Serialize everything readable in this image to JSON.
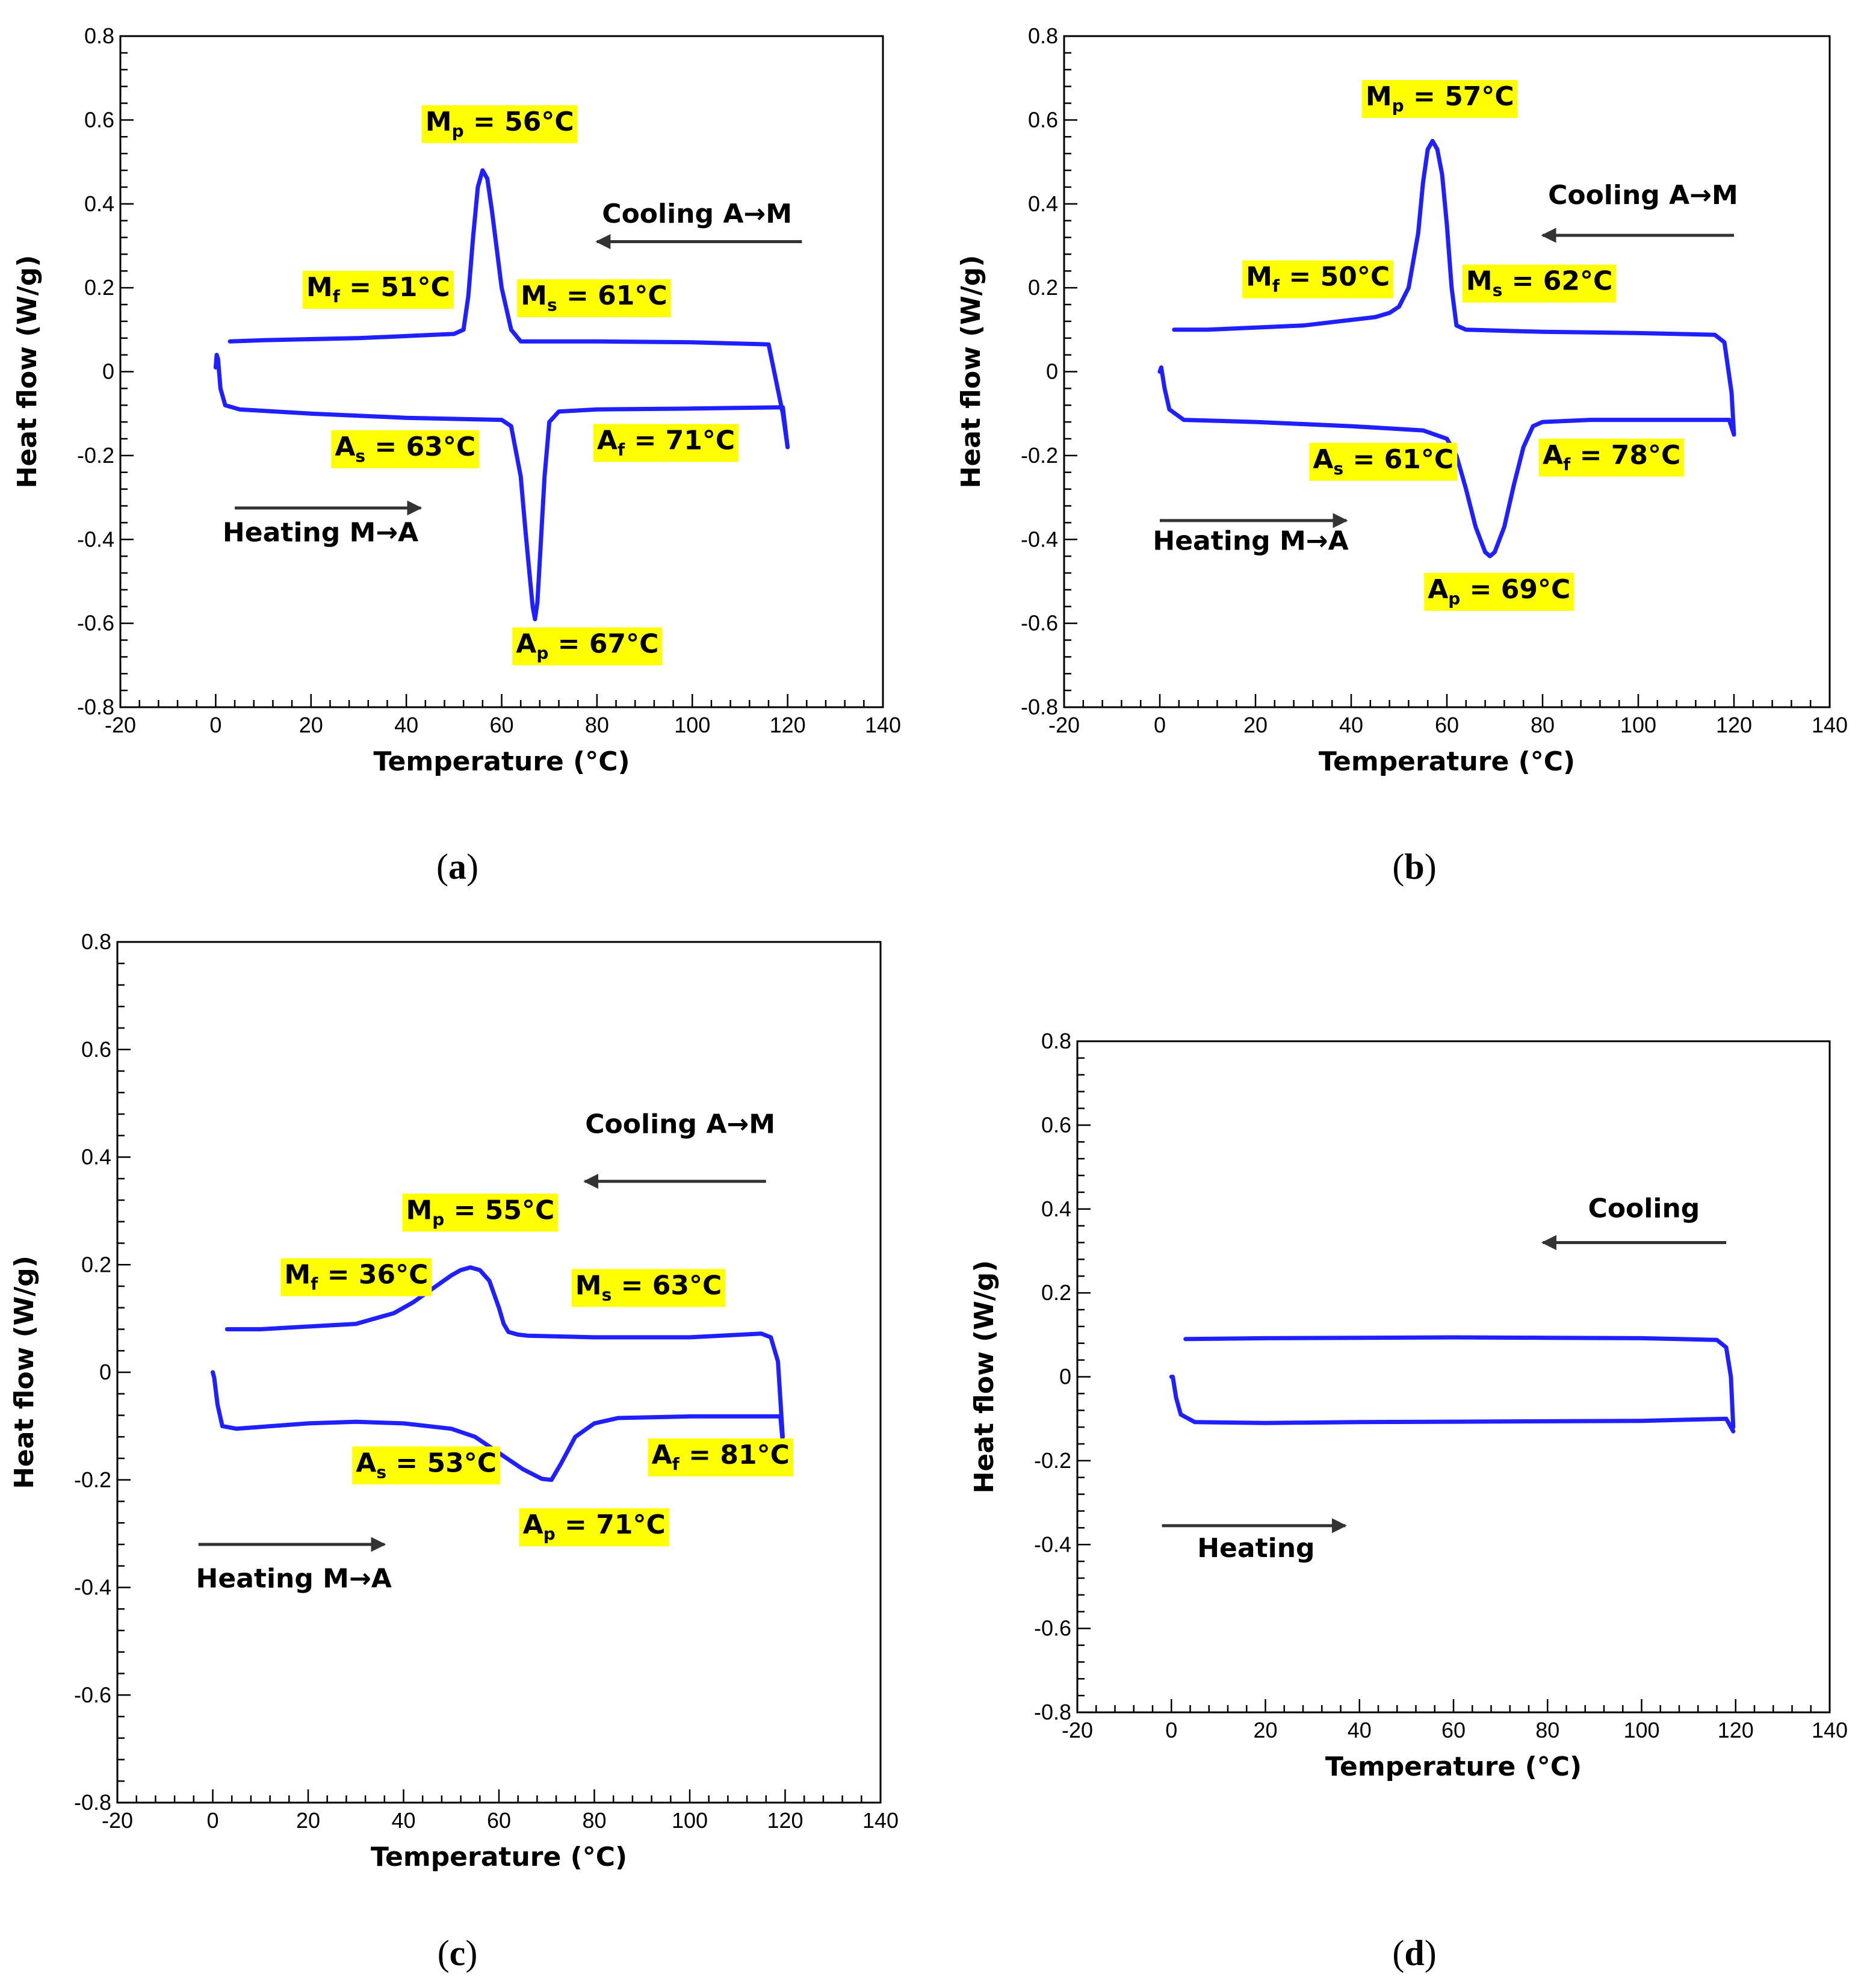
{
  "figure": {
    "colors": {
      "curve": "#1f1fff",
      "highlight": "#ffff00",
      "arrow": "#333333",
      "axis": "#000000"
    }
  },
  "chart_data": [
    {
      "type": "line",
      "panel": "a",
      "caption": {
        "open": "(",
        "letter": "a",
        "close": ")"
      },
      "xlabel": "Temperature (°C)",
      "ylabel": "Heat flow (W/g)",
      "xlim": [
        -20,
        140
      ],
      "ylim": [
        -0.8,
        0.8
      ],
      "xticks": [
        -20,
        0,
        20,
        40,
        60,
        80,
        100,
        120,
        140
      ],
      "yticks": [
        -0.8,
        -0.6,
        -0.4,
        -0.2,
        0,
        0.2,
        0.4,
        0.6,
        0.8
      ],
      "xtick_labels": [
        "-20",
        "0",
        "20",
        "40",
        "60",
        "80",
        "100",
        "120",
        "140"
      ],
      "ytick_labels": [
        "-0.8",
        "-0.6",
        "-0.4",
        "-0.2",
        "0",
        "0.2",
        "0.4",
        "0.6",
        "0.8"
      ],
      "series": [
        {
          "name": "Cooling",
          "x": [
            120,
            119,
            116,
            100,
            80,
            64,
            62,
            60,
            58,
            57,
            56,
            55,
            54,
            53,
            52,
            50,
            30,
            10,
            3
          ],
          "y": [
            -0.18,
            -0.1,
            0.065,
            0.07,
            0.072,
            0.072,
            0.1,
            0.2,
            0.38,
            0.46,
            0.48,
            0.44,
            0.32,
            0.18,
            0.1,
            0.09,
            0.08,
            0.075,
            0.072
          ]
        },
        {
          "name": "Heating",
          "x": [
            0,
            0.2,
            0.5,
            1,
            2,
            5,
            20,
            40,
            60,
            62,
            64,
            65,
            66,
            66.5,
            67,
            67.5,
            68,
            69,
            70,
            72,
            80,
            100,
            119,
            120
          ],
          "y": [
            0.01,
            0.04,
            0.03,
            -0.04,
            -0.08,
            -0.09,
            -0.1,
            -0.11,
            -0.115,
            -0.13,
            -0.25,
            -0.38,
            -0.5,
            -0.56,
            -0.59,
            -0.55,
            -0.45,
            -0.25,
            -0.12,
            -0.095,
            -0.09,
            -0.088,
            -0.085,
            -0.18
          ]
        }
      ],
      "annotations": [
        {
          "main": "M",
          "sub": "p",
          "rest": " = 56°C",
          "x": 44,
          "y": 0.575
        },
        {
          "main": "M",
          "sub": "f",
          "rest": " = 51°C",
          "x": 19,
          "y": 0.18
        },
        {
          "main": "M",
          "sub": "s",
          "rest": " = 61°C",
          "x": 64,
          "y": 0.16
        },
        {
          "main": "A",
          "sub": "s",
          "rest": " = 63°C",
          "x": 25,
          "y": -0.2
        },
        {
          "main": "A",
          "sub": "f",
          "rest": " = 71°C",
          "x": 80,
          "y": -0.185
        },
        {
          "main": "A",
          "sub": "p",
          "rest": " = 67°C",
          "x": 63,
          "y": -0.67
        }
      ],
      "arrows": [
        {
          "label": "Cooling A→M",
          "x_start": 123,
          "x_end": 80,
          "y": 0.31,
          "label_x": 101,
          "label_y": 0.355
        },
        {
          "label": "Heating M→A",
          "x_start": 4,
          "x_end": 43,
          "y": -0.325,
          "label_x": 22,
          "label_y": -0.405
        }
      ]
    },
    {
      "type": "line",
      "panel": "b",
      "caption": {
        "open": "(",
        "letter": "b",
        "close": ")"
      },
      "xlabel": "Temperature (°C)",
      "ylabel": "Heat flow (W/g)",
      "xlim": [
        -20,
        140
      ],
      "ylim": [
        -0.8,
        0.8
      ],
      "xticks": [
        -20,
        0,
        20,
        40,
        60,
        80,
        100,
        120,
        140
      ],
      "yticks": [
        -0.8,
        -0.6,
        -0.4,
        -0.2,
        0,
        0.2,
        0.4,
        0.6,
        0.8
      ],
      "xtick_labels": [
        "-20",
        "0",
        "20",
        "40",
        "60",
        "80",
        "100",
        "120",
        "140"
      ],
      "ytick_labels": [
        "-0.8",
        "-0.6",
        "-0.4",
        "-0.2",
        "0",
        "0.2",
        "0.4",
        "0.6",
        "0.8"
      ],
      "series": [
        {
          "name": "Cooling",
          "x": [
            120,
            119.5,
            118,
            116,
            100,
            80,
            64,
            62,
            61,
            60,
            59,
            58,
            57,
            56,
            55,
            54,
            52,
            50,
            48,
            45,
            30,
            10,
            3
          ],
          "y": [
            -0.15,
            -0.05,
            0.07,
            0.088,
            0.092,
            0.095,
            0.1,
            0.11,
            0.2,
            0.35,
            0.47,
            0.53,
            0.55,
            0.53,
            0.45,
            0.33,
            0.2,
            0.155,
            0.14,
            0.13,
            0.11,
            0.1,
            0.1
          ]
        },
        {
          "name": "Heating",
          "x": [
            0,
            0.3,
            1,
            2,
            5,
            20,
            40,
            55,
            60,
            62,
            64,
            66,
            68,
            69,
            70,
            72,
            74,
            76,
            78,
            80,
            90,
            100,
            119,
            120
          ],
          "y": [
            0.0,
            0.01,
            -0.04,
            -0.09,
            -0.115,
            -0.12,
            -0.13,
            -0.14,
            -0.16,
            -0.2,
            -0.28,
            -0.37,
            -0.43,
            -0.44,
            -0.43,
            -0.37,
            -0.27,
            -0.18,
            -0.13,
            -0.12,
            -0.115,
            -0.115,
            -0.115,
            -0.15
          ]
        }
      ],
      "annotations": [
        {
          "main": "M",
          "sub": "p",
          "rest": " = 57°C",
          "x": 43,
          "y": 0.635
        },
        {
          "main": "M",
          "sub": "f",
          "rest": " = 50°C",
          "x": 18,
          "y": 0.205
        },
        {
          "main": "M",
          "sub": "s",
          "rest": " = 62°C",
          "x": 64,
          "y": 0.195
        },
        {
          "main": "A",
          "sub": "s",
          "rest": " = 61°C",
          "x": 32,
          "y": -0.23
        },
        {
          "main": "A",
          "sub": "f",
          "rest": " = 78°C",
          "x": 80,
          "y": -0.22
        },
        {
          "main": "A",
          "sub": "p",
          "rest": " = 69°C",
          "x": 56,
          "y": -0.54
        }
      ],
      "arrows": [
        {
          "label": "Cooling A→M",
          "x_start": 120,
          "x_end": 80,
          "y": 0.325,
          "label_x": 101,
          "label_y": 0.4
        },
        {
          "label": "Heating M→A",
          "x_start": 0,
          "x_end": 39,
          "y": -0.355,
          "label_x": 19,
          "label_y": -0.425
        }
      ]
    },
    {
      "type": "line",
      "panel": "c",
      "caption": {
        "open": "(",
        "letter": "c",
        "close": ")"
      },
      "xlabel": "Temperature (°C)",
      "ylabel": "Heat flow (W/g)",
      "xlim": [
        -20,
        140
      ],
      "ylim": [
        -0.8,
        0.8
      ],
      "xticks": [
        -20,
        0,
        20,
        40,
        60,
        80,
        100,
        120,
        140
      ],
      "yticks": [
        -0.8,
        -0.6,
        -0.4,
        -0.2,
        0,
        0.2,
        0.4,
        0.6,
        0.8
      ],
      "xtick_labels": [
        "-20",
        "0",
        "20",
        "40",
        "60",
        "80",
        "100",
        "120",
        "140"
      ],
      "ytick_labels": [
        "-0.8",
        "-0.6",
        "-0.4",
        "-0.2",
        "0",
        "0.2",
        "0.4",
        "0.6",
        "0.8"
      ],
      "series": [
        {
          "name": "Cooling",
          "x": [
            119.5,
            118.5,
            117,
            115,
            100,
            80,
            66,
            64,
            62,
            61,
            60,
            58,
            56,
            54,
            52,
            50,
            46,
            42,
            38,
            34,
            30,
            20,
            10,
            3
          ],
          "y": [
            -0.12,
            0.02,
            0.065,
            0.072,
            0.065,
            0.065,
            0.068,
            0.07,
            0.075,
            0.09,
            0.12,
            0.17,
            0.19,
            0.195,
            0.19,
            0.18,
            0.155,
            0.13,
            0.11,
            0.1,
            0.09,
            0.085,
            0.08,
            0.08
          ]
        },
        {
          "name": "Heating",
          "x": [
            0,
            0.3,
            1,
            2,
            5,
            20,
            30,
            40,
            50,
            55,
            60,
            65,
            69,
            71,
            73,
            76,
            80,
            85,
            100,
            119,
            119.5
          ],
          "y": [
            0.0,
            -0.01,
            -0.06,
            -0.1,
            -0.105,
            -0.095,
            -0.092,
            -0.095,
            -0.105,
            -0.12,
            -0.15,
            -0.18,
            -0.198,
            -0.2,
            -0.17,
            -0.12,
            -0.095,
            -0.085,
            -0.082,
            -0.082,
            -0.13
          ]
        }
      ],
      "annotations": [
        {
          "main": "M",
          "sub": "p",
          "rest": " = 55°C",
          "x": 40.5,
          "y": 0.285
        },
        {
          "main": "M",
          "sub": "f",
          "rest": " = 36°C",
          "x": 15,
          "y": 0.165
        },
        {
          "main": "M",
          "sub": "s",
          "rest": " = 63°C",
          "x": 76,
          "y": 0.145
        },
        {
          "main": "A",
          "sub": "s",
          "rest": " = 53°C",
          "x": 30,
          "y": -0.185
        },
        {
          "main": "A",
          "sub": "f",
          "rest": " = 81°C",
          "x": 92,
          "y": -0.17
        },
        {
          "main": "A",
          "sub": "p",
          "rest": " = 71°C",
          "x": 65,
          "y": -0.3
        }
      ],
      "arrows": [
        {
          "label": "Cooling A→M",
          "x_start": 116,
          "x_end": 78,
          "y": 0.355,
          "label_x": 98,
          "label_y": 0.445
        },
        {
          "label": "Heating M→A",
          "x_start": -3,
          "x_end": 36,
          "y": -0.32,
          "label_x": 17,
          "label_y": -0.4
        }
      ]
    },
    {
      "type": "line",
      "panel": "d",
      "caption": {
        "open": "(",
        "letter": "d",
        "close": ")"
      },
      "xlabel": "Temperature (°C)",
      "ylabel": "Heat flow (W/g)",
      "xlim": [
        -20,
        140
      ],
      "ylim": [
        -0.8,
        0.8
      ],
      "xticks": [
        -20,
        0,
        20,
        40,
        60,
        80,
        100,
        120,
        140
      ],
      "yticks": [
        -0.8,
        -0.6,
        -0.4,
        -0.2,
        0,
        0.2,
        0.4,
        0.6,
        0.8
      ],
      "xtick_labels": [
        "-20",
        "0",
        "20",
        "40",
        "60",
        "80",
        "100",
        "120",
        "140"
      ],
      "ytick_labels": [
        "-0.8",
        "-0.6",
        "-0.4",
        "-0.2",
        "0",
        "0.2",
        "0.4",
        "0.6",
        "0.8"
      ],
      "series": [
        {
          "name": "Cooling",
          "x": [
            119.5,
            119,
            118,
            116,
            100,
            80,
            60,
            40,
            20,
            3
          ],
          "y": [
            -0.12,
            0.0,
            0.07,
            0.088,
            0.092,
            0.093,
            0.094,
            0.093,
            0.092,
            0.09
          ]
        },
        {
          "name": "Heating",
          "x": [
            0,
            0.3,
            1,
            2,
            5,
            20,
            40,
            60,
            80,
            100,
            118,
            119.5
          ],
          "y": [
            0.0,
            0.0,
            -0.05,
            -0.09,
            -0.108,
            -0.11,
            -0.108,
            -0.107,
            -0.106,
            -0.105,
            -0.1,
            -0.13
          ]
        }
      ],
      "annotations": [],
      "arrows": [
        {
          "label": "Cooling",
          "x_start": 118,
          "x_end": 79,
          "y": 0.32,
          "label_x": 100.5,
          "label_y": 0.38
        },
        {
          "label": "Heating",
          "x_start": -2,
          "x_end": 37,
          "y": -0.355,
          "label_x": 18,
          "label_y": -0.43
        }
      ]
    }
  ]
}
